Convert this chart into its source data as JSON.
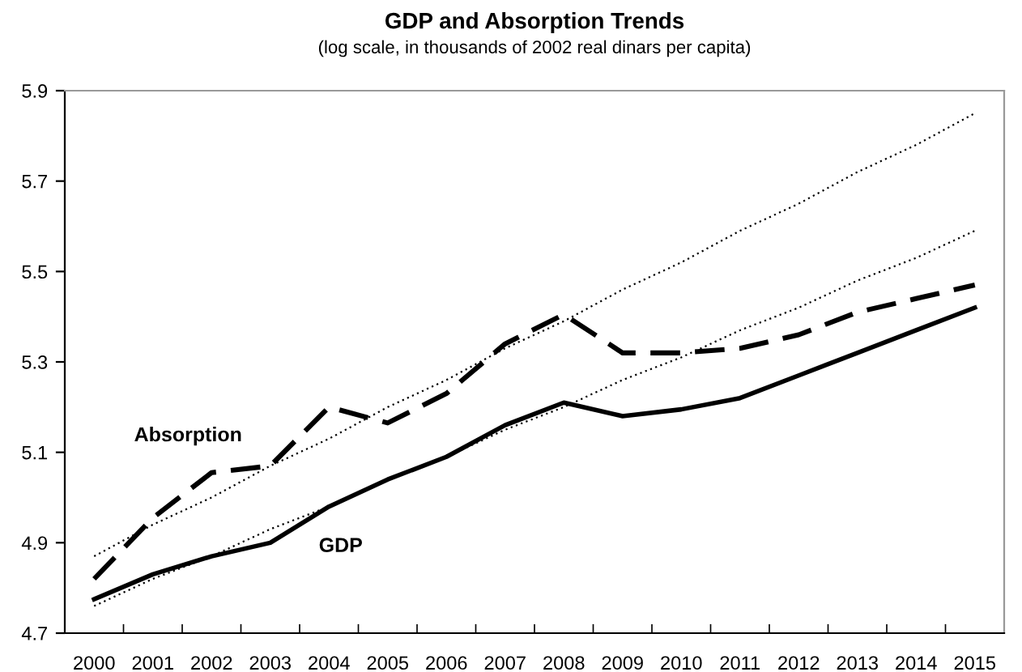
{
  "chart_data": {
    "type": "line",
    "title": "GDP and Absorption Trends",
    "subtitle": "(log scale, in thousands of 2002 real dinars per capita)",
    "categories": [
      "2000",
      "2001",
      "2002",
      "2003",
      "2004",
      "2005",
      "2006",
      "2007",
      "2008",
      "2009",
      "2010",
      "2011",
      "2012",
      "2013",
      "2014",
      "2015"
    ],
    "series": [
      {
        "name": "Absorption",
        "color": "#000000",
        "line_style": "dashed",
        "values": [
          4.82,
          4.955,
          5.055,
          5.07,
          5.2,
          5.165,
          5.23,
          5.34,
          5.405,
          5.32,
          5.32,
          5.33,
          5.36,
          5.41,
          5.44,
          5.47
        ]
      },
      {
        "name": "GDP",
        "color": "#000000",
        "line_style": "solid",
        "values": [
          4.775,
          4.83,
          4.87,
          4.9,
          4.98,
          5.04,
          5.09,
          5.16,
          5.21,
          5.18,
          5.195,
          5.22,
          5.27,
          5.32,
          5.37,
          5.42
        ]
      },
      {
        "type": "line",
        "color": "#000000",
        "line_style": "dotted",
        "values": [
          4.87,
          4.94,
          5.0,
          5.07,
          5.13,
          5.2,
          5.26,
          5.33,
          5.39,
          5.46,
          5.52,
          5.59,
          5.65,
          5.72,
          5.78,
          5.85
        ]
      },
      {
        "type": "line",
        "color": "#000000",
        "line_style": "dotted",
        "values": [
          4.76,
          4.82,
          4.87,
          4.93,
          4.98,
          5.04,
          5.09,
          5.15,
          5.2,
          5.26,
          5.31,
          5.37,
          5.42,
          5.48,
          5.53,
          5.59
        ]
      }
    ],
    "ylim": [
      4.7,
      5.9
    ],
    "yticks": [
      4.7,
      4.9,
      5.1,
      5.3,
      5.5,
      5.7,
      5.9
    ],
    "grid": false,
    "legend": false
  }
}
